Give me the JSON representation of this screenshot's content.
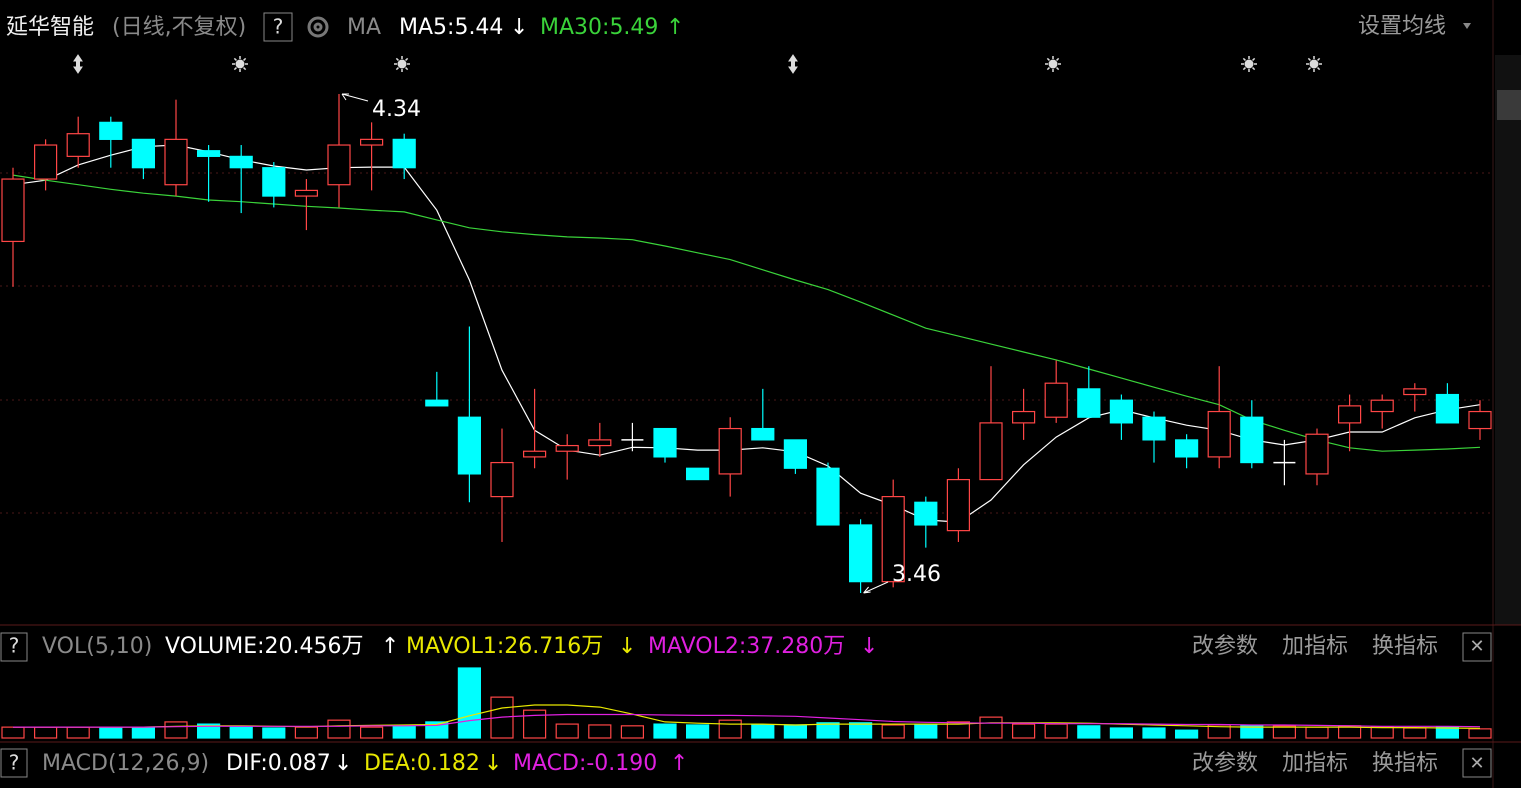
{
  "header": {
    "name": "延华智能",
    "period": "(日线,不复权)",
    "help": "?",
    "ma_label": "MA",
    "ma5": "MA5:5.44",
    "ma5_arrow": "↓",
    "ma30": "MA30:5.49",
    "ma30_arrow": "↑",
    "settings": "设置均线"
  },
  "chart_data": [
    {
      "type": "candlestick",
      "up_color": "#ff4646",
      "down_color": "#00ffff",
      "doji_color": "#ffffff",
      "open": [
        4.08,
        4.19,
        4.23,
        4.29,
        4.26,
        4.18,
        4.24,
        4.23,
        4.21,
        4.16,
        4.18,
        4.25,
        4.26,
        3.8,
        3.77,
        3.63,
        3.7,
        3.71,
        3.72,
        3.73,
        3.75,
        3.68,
        3.67,
        3.75,
        3.73,
        3.68,
        3.58,
        3.48,
        3.62,
        3.57,
        3.66,
        3.76,
        3.77,
        3.82,
        3.8,
        3.77,
        3.73,
        3.7,
        3.77,
        3.69,
        3.67,
        3.76,
        3.78,
        3.81,
        3.81,
        3.75
      ],
      "high": [
        4.21,
        4.26,
        4.3,
        4.3,
        4.26,
        4.33,
        4.25,
        4.25,
        4.22,
        4.19,
        4.34,
        4.29,
        4.27,
        3.85,
        3.93,
        3.75,
        3.82,
        3.74,
        3.76,
        3.76,
        3.75,
        3.68,
        3.77,
        3.82,
        3.73,
        3.69,
        3.59,
        3.66,
        3.63,
        3.68,
        3.86,
        3.82,
        3.87,
        3.86,
        3.81,
        3.78,
        3.74,
        3.86,
        3.8,
        3.73,
        3.75,
        3.81,
        3.81,
        3.83,
        3.83,
        3.8
      ],
      "low": [
        4.0,
        4.17,
        4.21,
        4.21,
        4.19,
        4.16,
        4.15,
        4.13,
        4.14,
        4.1,
        4.14,
        4.17,
        4.19,
        3.79,
        3.62,
        3.55,
        3.68,
        3.66,
        3.7,
        3.71,
        3.69,
        3.66,
        3.63,
        3.73,
        3.67,
        3.58,
        3.46,
        3.47,
        3.54,
        3.55,
        3.66,
        3.73,
        3.76,
        3.77,
        3.73,
        3.69,
        3.68,
        3.68,
        3.68,
        3.65,
        3.65,
        3.71,
        3.75,
        3.78,
        3.76,
        3.73
      ],
      "close": [
        4.19,
        4.25,
        4.27,
        4.26,
        4.21,
        4.26,
        4.23,
        4.21,
        4.16,
        4.17,
        4.25,
        4.26,
        4.21,
        3.79,
        3.67,
        3.69,
        3.71,
        3.72,
        3.73,
        3.73,
        3.7,
        3.66,
        3.75,
        3.73,
        3.68,
        3.58,
        3.48,
        3.63,
        3.58,
        3.66,
        3.76,
        3.78,
        3.83,
        3.77,
        3.76,
        3.73,
        3.7,
        3.78,
        3.69,
        3.69,
        3.74,
        3.79,
        3.8,
        3.82,
        3.76,
        3.78
      ],
      "series": [
        {
          "color": "#ffffff",
          "values": [
            4.18,
            4.188,
            4.215,
            4.232,
            4.247,
            4.25,
            4.238,
            4.224,
            4.213,
            4.206,
            4.21,
            4.211,
            4.211,
            4.135,
            4.012,
            3.853,
            3.747,
            3.712,
            3.703,
            3.717,
            3.716,
            3.712,
            3.712,
            3.716,
            3.709,
            3.684,
            3.636,
            3.615,
            3.589,
            3.585,
            3.624,
            3.686,
            3.735,
            3.769,
            3.783,
            3.769,
            3.756,
            3.747,
            3.73,
            3.721,
            3.73,
            3.744,
            3.744,
            3.769,
            3.783,
            3.792
          ]
        },
        {
          "color": "#3ad33a",
          "values": [
            4.197,
            4.188,
            4.18,
            4.172,
            4.165,
            4.16,
            4.153,
            4.15,
            4.146,
            4.142,
            4.139,
            4.135,
            4.132,
            4.118,
            4.104,
            4.097,
            4.092,
            4.088,
            4.086,
            4.083,
            4.072,
            4.06,
            4.048,
            4.03,
            4.012,
            3.995,
            3.973,
            3.95,
            3.927,
            3.913,
            3.899,
            3.885,
            3.871,
            3.855,
            3.839,
            3.823,
            3.807,
            3.792,
            3.765,
            3.747,
            3.73,
            3.716,
            3.71,
            3.712,
            3.714,
            3.717
          ]
        }
      ]
    },
    {
      "type": "bar",
      "values": [
        25,
        25,
        25,
        25,
        25,
        37,
        32,
        25,
        23,
        25,
        41,
        25,
        28,
        37,
        161,
        94,
        64,
        32,
        30,
        28,
        32,
        30,
        41,
        30,
        30,
        35,
        35,
        30,
        32,
        37,
        48,
        32,
        32,
        28,
        23,
        23,
        18,
        30,
        28,
        28,
        25,
        28,
        25,
        23,
        25,
        21
      ],
      "series": [
        {
          "color": "#e8e800",
          "values": [
            25,
            25,
            25,
            25,
            25,
            27,
            28,
            28,
            27,
            26,
            28,
            29,
            30,
            31,
            51,
            69,
            76,
            76,
            71,
            55,
            37,
            34,
            32,
            32,
            30,
            32,
            32,
            32,
            32,
            32,
            35,
            35,
            35,
            34,
            32,
            30,
            28,
            26,
            25,
            25,
            25,
            25,
            24,
            24,
            23,
            22
          ]
        },
        {
          "color": "#e020e0",
          "values": [
            25,
            25,
            25,
            25,
            25,
            26,
            27,
            27,
            27,
            27,
            27,
            28,
            28,
            29,
            40,
            48,
            52,
            54,
            54,
            54,
            53,
            52,
            52,
            51,
            50,
            46,
            42,
            38,
            36,
            35,
            34,
            34,
            33,
            33,
            33,
            32,
            31,
            31,
            30,
            30,
            29,
            28,
            27,
            27,
            27,
            26
          ]
        }
      ]
    }
  ],
  "volume_panel": {
    "help": "?",
    "name": "VOL(5,10)",
    "volume": "VOLUME:20.456万",
    "volume_arrow": "↑",
    "mavol1": "MAVOL1:26.716万",
    "mavol1_arrow": "↓",
    "mavol2": "MAVOL2:37.280万",
    "mavol2_arrow": "↓",
    "edit": "改参数",
    "add": "加指标",
    "swap": "换指标",
    "close": "✕"
  },
  "macd_panel": {
    "help": "?",
    "name": "MACD(12,26,9)",
    "dif": "DIF:0.087",
    "dif_arrow": "↓",
    "dea": "DEA:0.182",
    "dea_arrow": "↓",
    "macd": "MACD:-0.190",
    "macd_arrow": "↑",
    "edit": "改参数",
    "add": "加指标",
    "swap": "换指标",
    "close": "✕"
  }
}
